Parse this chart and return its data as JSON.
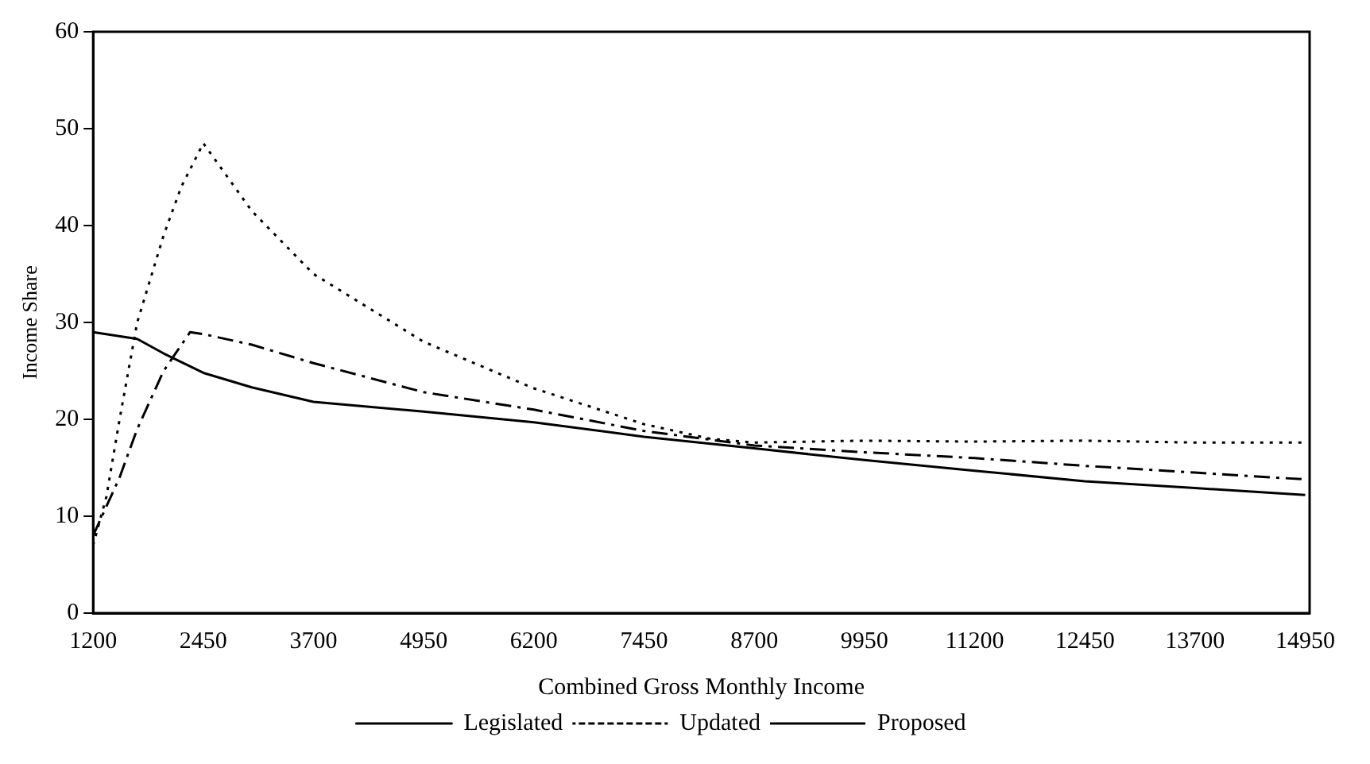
{
  "chart_data": {
    "type": "line",
    "xlabel": "Combined Gross Monthly Income",
    "ylabel": "Income Share",
    "xlim": [
      1200,
      15000
    ],
    "xticks": [
      1200,
      2450,
      3700,
      4950,
      6200,
      7450,
      8700,
      9950,
      11200,
      12450,
      13700,
      14950
    ],
    "ylim": [
      0,
      60
    ],
    "yticks": [
      0,
      10,
      20,
      30,
      40,
      50,
      60
    ],
    "grid": false,
    "legend": "bottom",
    "marker": "none",
    "series": [
      {
        "name": "Legislated",
        "color": "#000000",
        "line_style": "solid",
        "x": [
          1200,
          1700,
          2000,
          2450,
          3000,
          3700,
          4950,
          6200,
          7450,
          8700,
          9950,
          11200,
          12450,
          13700,
          14950
        ],
        "values": [
          29,
          28.3,
          26.8,
          24.8,
          23.3,
          21.8,
          20.8,
          19.7,
          18.2,
          17,
          15.8,
          14.7,
          13.6,
          12.9,
          12.2
        ]
      },
      {
        "name": "Updated",
        "color": "#000000",
        "line_style": "dotted",
        "x": [
          1200,
          1350,
          1500,
          1700,
          2000,
          2200,
          2450,
          3000,
          3700,
          4950,
          6200,
          7450,
          8200,
          8700,
          9950,
          11200,
          12450,
          13700,
          14950
        ],
        "values": [
          7,
          12,
          20,
          30,
          39,
          44,
          48.5,
          41.5,
          35,
          28,
          23.2,
          19.5,
          18,
          17.6,
          17.8,
          17.7,
          17.8,
          17.6,
          17.6
        ]
      },
      {
        "name": "Proposed",
        "color": "#000000",
        "line_style": "dashed",
        "x": [
          1200,
          1500,
          1700,
          2000,
          2300,
          2450,
          3000,
          3700,
          4950,
          6200,
          7450,
          8700,
          9950,
          11200,
          12450,
          13700,
          14950
        ],
        "values": [
          8,
          14,
          19,
          25,
          29,
          28.8,
          27.7,
          25.8,
          22.8,
          21,
          18.8,
          17.3,
          16.6,
          16,
          15.2,
          14.5,
          13.8
        ]
      }
    ]
  }
}
